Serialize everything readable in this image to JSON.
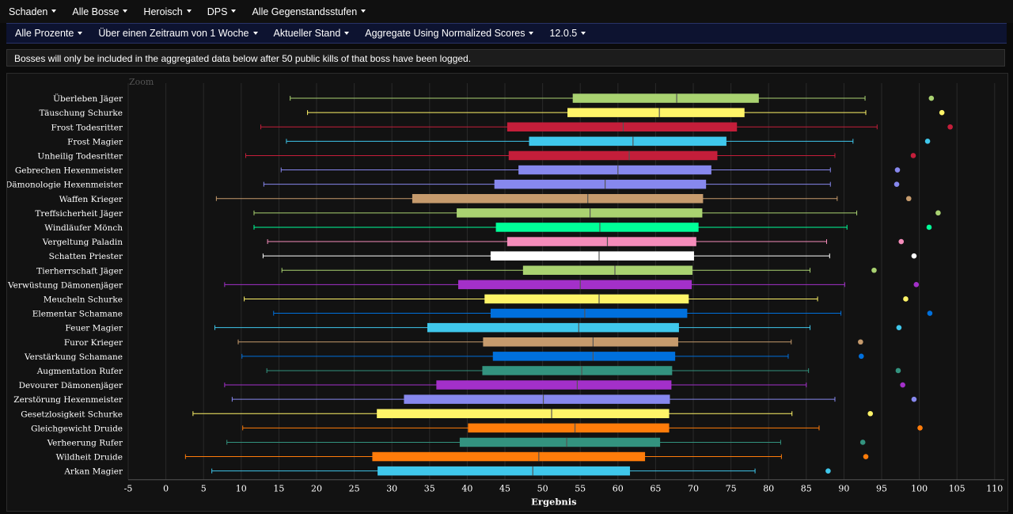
{
  "menu": {
    "items": [
      {
        "label": "Schaden"
      },
      {
        "label": "Alle Bosse"
      },
      {
        "label": "Heroisch"
      },
      {
        "label": "DPS"
      },
      {
        "label": "Alle Gegenstandsstufen"
      }
    ]
  },
  "submenu": {
    "items": [
      {
        "label": "Alle Prozente"
      },
      {
        "label": "Über einen Zeitraum von 1 Woche"
      },
      {
        "label": "Aktueller Stand"
      },
      {
        "label": "Aggregate Using Normalized Scores"
      },
      {
        "label": "12.0.5"
      }
    ]
  },
  "notice": {
    "text": "Bosses will only be included in the aggregated data below after 50 public kills of that boss have been logged."
  },
  "chart_data": {
    "type": "boxplot",
    "orientation": "horizontal",
    "zoom_label": "Zoom",
    "xlabel": "Ergebnis",
    "xlim": [
      -5,
      112
    ],
    "xticks": [
      -5,
      0,
      5,
      10,
      15,
      20,
      25,
      30,
      35,
      40,
      45,
      50,
      55,
      60,
      65,
      70,
      75,
      80,
      85,
      90,
      95,
      100,
      105,
      110
    ],
    "grid": true,
    "categories": [
      {
        "name": "Überleben Jäger",
        "color": "#a9d271",
        "min": 16.5,
        "q1": 54.0,
        "median": 67.8,
        "q3": 78.7,
        "max": 92.8,
        "outlier": 101.6
      },
      {
        "name": "Täuschung Schurke",
        "color": "#fff468",
        "min": 18.8,
        "q1": 53.3,
        "median": 65.5,
        "q3": 76.8,
        "max": 92.9,
        "outlier": 103.0
      },
      {
        "name": "Frost Todesritter",
        "color": "#c41e3a",
        "min": 12.6,
        "q1": 45.3,
        "median": 60.7,
        "q3": 75.8,
        "max": 94.4,
        "outlier": 104.1
      },
      {
        "name": "Frost Magier",
        "color": "#3fc7eb",
        "min": 16.0,
        "q1": 48.2,
        "median": 62.0,
        "q3": 74.4,
        "max": 91.2,
        "outlier": 101.1
      },
      {
        "name": "Unheilig Todesritter",
        "color": "#c41e3a",
        "min": 10.6,
        "q1": 45.5,
        "median": 61.5,
        "q3": 73.2,
        "max": 88.8,
        "outlier": 99.2
      },
      {
        "name": "Gebrechen Hexenmeister",
        "color": "#8788ee",
        "min": 15.3,
        "q1": 46.8,
        "median": 60.0,
        "q3": 72.4,
        "max": 88.2,
        "outlier": 97.1
      },
      {
        "name": "Dämonologie Hexenmeister",
        "color": "#8788ee",
        "min": 13.0,
        "q1": 43.6,
        "median": 58.3,
        "q3": 71.7,
        "max": 88.2,
        "outlier": 97.0
      },
      {
        "name": "Waffen Krieger",
        "color": "#c69b6d",
        "min": 6.7,
        "q1": 32.7,
        "median": 56.0,
        "q3": 71.3,
        "max": 89.1,
        "outlier": 98.6
      },
      {
        "name": "Treffsicherheit Jäger",
        "color": "#a9d271",
        "min": 11.7,
        "q1": 38.6,
        "median": 56.3,
        "q3": 71.2,
        "max": 91.7,
        "outlier": 102.5
      },
      {
        "name": "Windläufer Mönch",
        "color": "#00ff98",
        "min": 11.7,
        "q1": 43.8,
        "median": 57.6,
        "q3": 70.7,
        "max": 90.4,
        "outlier": 101.3
      },
      {
        "name": "Vergeltung Paladin",
        "color": "#f48cba",
        "min": 13.5,
        "q1": 45.3,
        "median": 58.6,
        "q3": 70.4,
        "max": 87.7,
        "outlier": 97.6
      },
      {
        "name": "Schatten Priester",
        "color": "#ffffff",
        "min": 12.9,
        "q1": 43.1,
        "median": 57.5,
        "q3": 70.1,
        "max": 88.1,
        "outlier": 99.3
      },
      {
        "name": "Tierherrschaft Jäger",
        "color": "#a9d271",
        "min": 15.4,
        "q1": 47.4,
        "median": 59.6,
        "q3": 69.9,
        "max": 85.5,
        "outlier": 94.0
      },
      {
        "name": "Verwüstung Dämonenjäger",
        "color": "#a330c9",
        "min": 7.8,
        "q1": 38.8,
        "median": 55.0,
        "q3": 69.8,
        "max": 90.1,
        "outlier": 99.6
      },
      {
        "name": "Meucheln Schurke",
        "color": "#fff468",
        "min": 10.4,
        "q1": 42.3,
        "median": 57.5,
        "q3": 69.4,
        "max": 86.5,
        "outlier": 98.2
      },
      {
        "name": "Elementar Schamane",
        "color": "#0070dd",
        "min": 14.3,
        "q1": 43.1,
        "median": 55.6,
        "q3": 69.2,
        "max": 89.6,
        "outlier": 101.4
      },
      {
        "name": "Feuer Magier",
        "color": "#3fc7eb",
        "min": 6.5,
        "q1": 34.7,
        "median": 54.8,
        "q3": 68.1,
        "max": 85.5,
        "outlier": 97.3
      },
      {
        "name": "Furor Krieger",
        "color": "#c69b6d",
        "min": 9.6,
        "q1": 42.1,
        "median": 56.7,
        "q3": 68.0,
        "max": 83.0,
        "outlier": 92.2
      },
      {
        "name": "Verstärkung Schamane",
        "color": "#0070dd",
        "min": 10.1,
        "q1": 43.4,
        "median": 56.7,
        "q3": 67.6,
        "max": 82.6,
        "outlier": 92.3
      },
      {
        "name": "Augmentation Rufer",
        "color": "#33937f",
        "min": 13.4,
        "q1": 42.0,
        "median": 55.2,
        "q3": 67.2,
        "max": 85.3,
        "outlier": 97.2
      },
      {
        "name": "Devourer Dämonenjäger",
        "color": "#a330c9",
        "min": 7.8,
        "q1": 35.9,
        "median": 54.6,
        "q3": 67.1,
        "max": 85.0,
        "outlier": 97.8
      },
      {
        "name": "Zerstörung Hexenmeister",
        "color": "#8788ee",
        "min": 8.8,
        "q1": 31.6,
        "median": 50.1,
        "q3": 66.9,
        "max": 88.8,
        "outlier": 99.3
      },
      {
        "name": "Gesetzlosigkeit Schurke",
        "color": "#fff468",
        "min": 3.6,
        "q1": 28.0,
        "median": 51.2,
        "q3": 66.8,
        "max": 83.1,
        "outlier": 93.5
      },
      {
        "name": "Gleichgewicht Druide",
        "color": "#ff7c0a",
        "min": 10.2,
        "q1": 40.1,
        "median": 54.3,
        "q3": 66.8,
        "max": 86.7,
        "outlier": 100.1
      },
      {
        "name": "Verheerung Rufer",
        "color": "#33937f",
        "min": 8.1,
        "q1": 39.0,
        "median": 53.2,
        "q3": 65.6,
        "max": 81.6,
        "outlier": 92.5
      },
      {
        "name": "Wildheit Druide",
        "color": "#ff7c0a",
        "min": 2.6,
        "q1": 27.4,
        "median": 49.5,
        "q3": 63.6,
        "max": 81.7,
        "outlier": 92.9
      },
      {
        "name": "Arkan Magier",
        "color": "#3fc7eb",
        "min": 6.1,
        "q1": 28.1,
        "median": 48.7,
        "q3": 61.6,
        "max": 78.2,
        "outlier": 87.9
      }
    ]
  }
}
